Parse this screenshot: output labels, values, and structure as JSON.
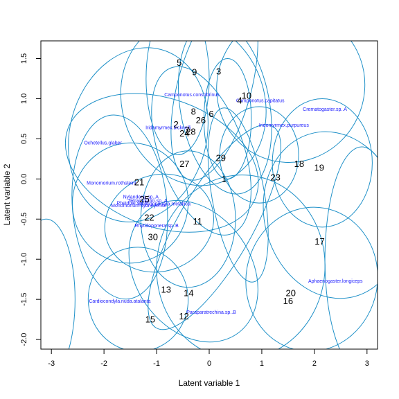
{
  "chart_data": {
    "type": "scatter",
    "xlabel": "Latent variable  1",
    "ylabel": "Latent variable  2",
    "xlim": [
      -3.2,
      3.2
    ],
    "ylim": [
      -2.12,
      1.72
    ],
    "x_ticks": [
      -3,
      -2,
      -1,
      0,
      1,
      2,
      3
    ],
    "y_ticks": [
      -2.0,
      -1.5,
      -1.0,
      -0.5,
      0.0,
      0.5,
      1.0,
      1.5
    ],
    "x_tick_labels": [
      "-3",
      "-2",
      "-1",
      "0",
      "1",
      "2",
      "3"
    ],
    "y_tick_labels": [
      "-2.0",
      "-1.5",
      "-1.0",
      "-0.5",
      "0.0",
      "0.5",
      "1.0",
      "1.5"
    ],
    "grid": false,
    "colors": {
      "ellipse": "#1e90c8",
      "species_text": "#1a1aff",
      "site_text": "#000000",
      "axis": "#000000"
    },
    "sites": [
      {
        "label": "1",
        "x": 0.28,
        "y": 0.0
      },
      {
        "label": "2",
        "x": -0.63,
        "y": 0.68
      },
      {
        "label": "3",
        "x": 0.18,
        "y": 1.34
      },
      {
        "label": "4",
        "x": 0.58,
        "y": 0.98
      },
      {
        "label": "5",
        "x": -0.57,
        "y": 1.45
      },
      {
        "label": "6",
        "x": 0.04,
        "y": 0.81
      },
      {
        "label": "7",
        "x": -0.42,
        "y": 0.61
      },
      {
        "label": "8",
        "x": -0.3,
        "y": 0.84
      },
      {
        "label": "9",
        "x": -0.28,
        "y": 1.33
      },
      {
        "label": "10",
        "x": 0.71,
        "y": 1.04
      },
      {
        "label": "11",
        "x": -0.22,
        "y": -0.53
      },
      {
        "label": "12",
        "x": -0.48,
        "y": -1.71
      },
      {
        "label": "13",
        "x": -0.82,
        "y": -1.38
      },
      {
        "label": "14",
        "x": -0.39,
        "y": -1.42
      },
      {
        "label": "15",
        "x": -1.12,
        "y": -1.75
      },
      {
        "label": "16",
        "x": 1.5,
        "y": -1.52
      },
      {
        "label": "17",
        "x": 2.1,
        "y": -0.78
      },
      {
        "label": "18",
        "x": 1.71,
        "y": 0.19
      },
      {
        "label": "19",
        "x": 2.09,
        "y": 0.14
      },
      {
        "label": "20",
        "x": 1.55,
        "y": -1.42
      },
      {
        "label": "21",
        "x": -1.33,
        "y": -0.04
      },
      {
        "label": "22",
        "x": -1.14,
        "y": -0.48
      },
      {
        "label": "23",
        "x": 1.26,
        "y": 0.02
      },
      {
        "label": "24",
        "x": -0.47,
        "y": 0.57
      },
      {
        "label": "25",
        "x": -1.23,
        "y": -0.25
      },
      {
        "label": "26",
        "x": -0.16,
        "y": 0.73
      },
      {
        "label": "27",
        "x": -0.47,
        "y": 0.19
      },
      {
        "label": "28",
        "x": -0.35,
        "y": 0.59
      },
      {
        "label": "29",
        "x": 0.22,
        "y": 0.26
      },
      {
        "label": "30",
        "x": -1.07,
        "y": -0.72
      }
    ],
    "species": [
      {
        "label": "Camponotus.consobrinus",
        "x": -0.33,
        "y": 1.05
      },
      {
        "label": "Camponotus.capitatus",
        "x": 0.97,
        "y": 0.98
      },
      {
        "label": "Crematogaster.sp..A",
        "x": 2.2,
        "y": 0.87
      },
      {
        "label": "Iridomyrmex.bicknelli",
        "x": -0.78,
        "y": 0.64
      },
      {
        "label": "Iridomyrmex.purpureus",
        "x": 1.42,
        "y": 0.67
      },
      {
        "label": "Ochetellus.glaber",
        "x": -2.02,
        "y": 0.45
      },
      {
        "label": "Monomorium.rothsteini",
        "x": -1.86,
        "y": -0.05
      },
      {
        "label": "Nylanderia.sp..A",
        "x": -1.3,
        "y": -0.22
      },
      {
        "label": "Tetramorium.sp..A",
        "x": -1.17,
        "y": -0.27
      },
      {
        "label": "Rhytidoponera.metallica",
        "x": -0.85,
        "y": -0.31
      },
      {
        "label": "Monomorium.sydneyense",
        "x": -1.34,
        "y": -0.33
      },
      {
        "label": "Rhytidoponera.sp..B",
        "x": -1.0,
        "y": -0.58
      },
      {
        "label": "Pheidole.sp..E",
        "x": -1.46,
        "y": -0.3
      },
      {
        "label": "Aphaenogaster.longiceps",
        "x": 2.4,
        "y": -1.27
      },
      {
        "label": "Cardiocondyla.nuda.atalanta",
        "x": -1.7,
        "y": -1.52
      },
      {
        "label": "Paraparatrechina.sp..B",
        "x": 0.04,
        "y": -1.66
      }
    ],
    "ellipses": [
      {
        "cx": -0.3,
        "cy": 0.95,
        "rx": 1.35,
        "ry": 1.05,
        "angle": 20
      },
      {
        "cx": 0.3,
        "cy": 0.9,
        "rx": 0.85,
        "ry": 1.1,
        "angle": 10
      },
      {
        "cx": -0.6,
        "cy": 1.25,
        "rx": 0.6,
        "ry": 0.95,
        "angle": 0
      },
      {
        "cx": 0.1,
        "cy": 1.15,
        "rx": 0.7,
        "ry": 1.2,
        "angle": -15
      },
      {
        "cx": 1.55,
        "cy": 1.15,
        "rx": 1.4,
        "ry": 0.95,
        "angle": -25
      },
      {
        "cx": -1.35,
        "cy": 0.55,
        "rx": 1.3,
        "ry": 1.1,
        "angle": -15
      },
      {
        "cx": -0.15,
        "cy": 0.35,
        "rx": 0.8,
        "ry": 1.1,
        "angle": 20
      },
      {
        "cx": 0.35,
        "cy": 0.75,
        "rx": 0.45,
        "ry": 0.75,
        "angle": 0
      },
      {
        "cx": 2.15,
        "cy": 0.2,
        "rx": 0.95,
        "ry": 0.8,
        "angle": 0
      },
      {
        "cx": 2.35,
        "cy": -0.45,
        "rx": 1.3,
        "ry": 1.05,
        "angle": 15
      },
      {
        "cx": -1.5,
        "cy": -0.3,
        "rx": 1.1,
        "ry": 0.75,
        "angle": -10
      },
      {
        "cx": -0.95,
        "cy": -0.55,
        "rx": 1.05,
        "ry": 0.6,
        "angle": 20
      },
      {
        "cx": -1.7,
        "cy": -0.35,
        "rx": 0.9,
        "ry": 1.15,
        "angle": 5
      },
      {
        "cx": 0.6,
        "cy": -1.1,
        "rx": 1.6,
        "ry": 1.15,
        "angle": -5
      },
      {
        "cx": 1.95,
        "cy": -1.25,
        "rx": 1.25,
        "ry": 0.9,
        "angle": -10
      },
      {
        "cx": -1.35,
        "cy": -1.5,
        "rx": 0.95,
        "ry": 0.65,
        "angle": 5
      },
      {
        "cx": -0.3,
        "cy": -1.15,
        "rx": 1.1,
        "ry": 0.95,
        "angle": 35
      },
      {
        "cx": 0.55,
        "cy": -0.2,
        "rx": 0.5,
        "ry": 1.1,
        "angle": 10
      },
      {
        "cx": -0.4,
        "cy": -0.5,
        "rx": 0.9,
        "ry": 0.85,
        "angle": 0
      },
      {
        "cx": 0.95,
        "cy": 0.3,
        "rx": 0.75,
        "ry": 0.6,
        "angle": 0
      },
      {
        "cx": 2.9,
        "cy": -1.0,
        "rx": 0.7,
        "ry": 1.4,
        "angle": 0
      },
      {
        "cx": -3.1,
        "cy": -1.5,
        "rx": 0.55,
        "ry": 1.0,
        "angle": 0
      },
      {
        "cx": -0.9,
        "cy": 0.2,
        "rx": 1.9,
        "ry": 0.8,
        "angle": -20
      },
      {
        "cx": 0.1,
        "cy": -0.6,
        "rx": 0.7,
        "ry": 1.45,
        "angle": -30
      }
    ]
  }
}
